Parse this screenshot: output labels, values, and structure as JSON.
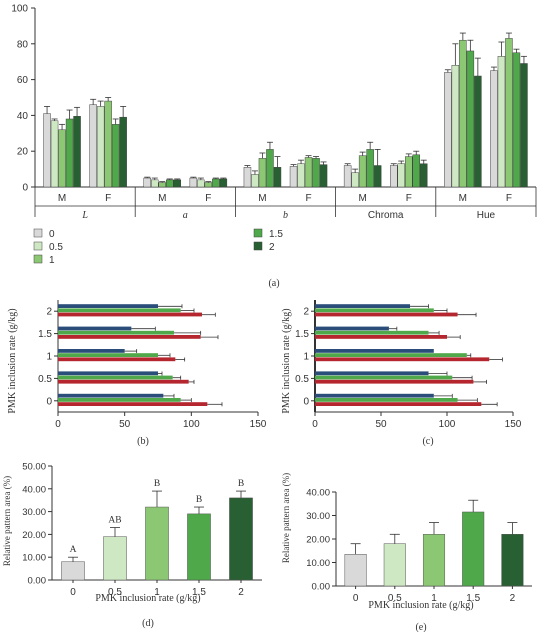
{
  "colors": {
    "g0": "#d9d9d9",
    "g05": "#cfe8c4",
    "g1": "#8cc873",
    "g15": "#4fa84a",
    "g2": "#285f33",
    "blue": "#2a4d7a",
    "green": "#4fa84a",
    "red": "#b5262f",
    "axis": "#333333"
  },
  "panel_a": {
    "label": "(a)",
    "legend": [
      {
        "label": "0",
        "color_key": "g0"
      },
      {
        "label": "0.5",
        "color_key": "g05"
      },
      {
        "label": "1",
        "color_key": "g1"
      },
      {
        "label": "1.5",
        "color_key": "g15"
      },
      {
        "label": "2",
        "color_key": "g2"
      }
    ],
    "groups": [
      "L",
      "a",
      "b",
      "Chroma",
      "Hue"
    ],
    "sub": [
      "M",
      "F"
    ]
  },
  "panel_b": {
    "label": "(b)",
    "ylabel": "PMK inclusion rate (g/kg)"
  },
  "panel_c": {
    "label": "(c)",
    "ylabel": "PMK inclusion rate (g/kg)"
  },
  "panel_d": {
    "label": "(d)",
    "ylabel": "Relative pattern area (%)",
    "xlabel": "PMK inclusion rate (g/kg)"
  },
  "panel_e": {
    "label": "(e)",
    "ylabel": "Relative pattern area (%)",
    "xlabel": "PMK inclusion rate (g/kg)"
  },
  "chart_data": [
    {
      "id": "a",
      "type": "bar",
      "ylim": [
        0,
        100
      ],
      "yticks": [
        "0",
        "20",
        "40",
        "60",
        "80",
        "100"
      ],
      "categories": [
        [
          "L",
          "M"
        ],
        [
          "L",
          "F"
        ],
        [
          "a",
          "M"
        ],
        [
          "a",
          "F"
        ],
        [
          "b",
          "M"
        ],
        [
          "b",
          "F"
        ],
        [
          "Chroma",
          "M"
        ],
        [
          "Chroma",
          "F"
        ],
        [
          "Hue",
          "M"
        ],
        [
          "Hue",
          "F"
        ]
      ],
      "series": [
        {
          "name": "0",
          "values": [
            41,
            46,
            5,
            5,
            11,
            11.5,
            12,
            12,
            64,
            65
          ],
          "errors": [
            4,
            3,
            0.5,
            0.5,
            1,
            1,
            1,
            1,
            1.5,
            2
          ]
        },
        {
          "name": "0.5",
          "values": [
            37,
            45,
            4,
            4,
            7,
            13,
            8,
            13,
            68,
            73
          ],
          "errors": [
            1,
            3,
            1,
            1,
            2,
            2,
            2,
            1.5,
            12,
            8
          ]
        },
        {
          "name": "1",
          "values": [
            32,
            48,
            2.5,
            2.5,
            16,
            16.5,
            17.5,
            17,
            82,
            83
          ],
          "errors": [
            3,
            2,
            0.5,
            0.5,
            3,
            1,
            2,
            1.5,
            4,
            3
          ]
        },
        {
          "name": "1.5",
          "values": [
            38,
            35,
            4,
            4.5,
            21,
            16,
            21,
            18,
            76,
            75
          ],
          "errors": [
            5,
            3,
            0.5,
            0.5,
            4,
            1,
            4,
            2,
            6,
            2
          ]
        },
        {
          "name": "2",
          "values": [
            39.5,
            39,
            4,
            4.5,
            11,
            12.5,
            12,
            13,
            62,
            69
          ],
          "errors": [
            5,
            6,
            0.5,
            0.5,
            6,
            1.5,
            9,
            2,
            10,
            4
          ]
        }
      ]
    },
    {
      "id": "b",
      "type": "bar",
      "orientation": "horizontal",
      "categories": [
        "0",
        "0.5",
        "1",
        "1.5",
        "2"
      ],
      "xlim": [
        0,
        150
      ],
      "xticks": [
        "0",
        "50",
        "100",
        "150"
      ],
      "series": [
        {
          "color_key": "blue",
          "values": [
            79,
            75,
            50,
            55,
            75
          ],
          "errors": [
            8,
            3,
            9,
            18,
            18
          ]
        },
        {
          "color_key": "green",
          "values": [
            92,
            86,
            75,
            87,
            92
          ],
          "errors": [
            8,
            6,
            9,
            20,
            10
          ]
        },
        {
          "color_key": "red",
          "values": [
            112,
            98,
            88,
            107,
            108
          ],
          "errors": [
            11,
            4,
            7,
            13,
            10
          ]
        }
      ]
    },
    {
      "id": "c",
      "type": "bar",
      "orientation": "horizontal",
      "categories": [
        "0",
        "0.5",
        "1",
        "1.5",
        "2"
      ],
      "xlim": [
        0,
        150
      ],
      "xticks": [
        "0",
        "50",
        "100",
        "150"
      ],
      "series": [
        {
          "color_key": "blue",
          "values": [
            90,
            86,
            90,
            56,
            72
          ],
          "errors": [
            14,
            14,
            0,
            6,
            14
          ]
        },
        {
          "color_key": "green",
          "values": [
            108,
            104,
            115,
            86,
            90
          ],
          "errors": [
            15,
            15,
            3,
            8,
            10
          ]
        },
        {
          "color_key": "red",
          "values": [
            126,
            120,
            132,
            100,
            108
          ],
          "errors": [
            12,
            10,
            10,
            10,
            14
          ]
        }
      ]
    },
    {
      "id": "d",
      "type": "bar",
      "categories": [
        "0",
        "0.5",
        "1",
        "1.5",
        "2"
      ],
      "ylim": [
        0,
        50
      ],
      "yticks": [
        "0.00",
        "10.00",
        "20.00",
        "30.00",
        "40.00",
        "50.00"
      ],
      "values": [
        8,
        19,
        32,
        29,
        36
      ],
      "errors": [
        2,
        4,
        7,
        3,
        3
      ],
      "letters": [
        "A",
        "AB",
        "B",
        "B",
        "B"
      ],
      "color_keys": [
        "g0",
        "g05",
        "g1",
        "g15",
        "g2"
      ]
    },
    {
      "id": "e",
      "type": "bar",
      "categories": [
        "0",
        "0.5",
        "1",
        "1.5",
        "2"
      ],
      "ylim": [
        0,
        40
      ],
      "yticks": [
        "0.00",
        "10.00",
        "20.00",
        "30.00",
        "40.00"
      ],
      "values": [
        13.5,
        18,
        22,
        31.5,
        22
      ],
      "errors": [
        4.5,
        4,
        5,
        5,
        5
      ],
      "color_keys": [
        "g0",
        "g05",
        "g1",
        "g15",
        "g2"
      ]
    }
  ]
}
